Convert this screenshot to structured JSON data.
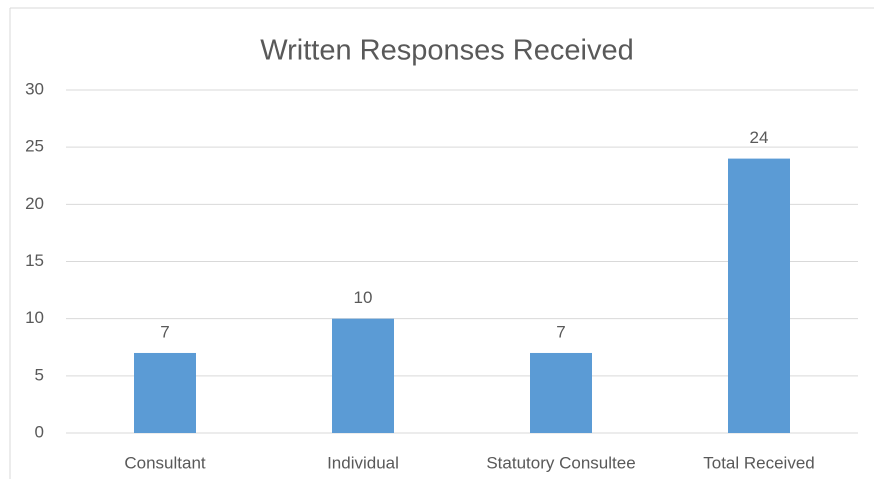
{
  "chart_data": {
    "type": "bar",
    "title": "Written Responses Received",
    "categories": [
      "Consultant",
      "Individual",
      "Statutory Consultee",
      "Total Received"
    ],
    "values": [
      7,
      10,
      7,
      24
    ],
    "color": "#5b9bd5",
    "ylim": [
      0,
      30
    ],
    "yticks": [
      0,
      5,
      10,
      15,
      20,
      25,
      30
    ],
    "grid": true,
    "data_labels": true
  }
}
